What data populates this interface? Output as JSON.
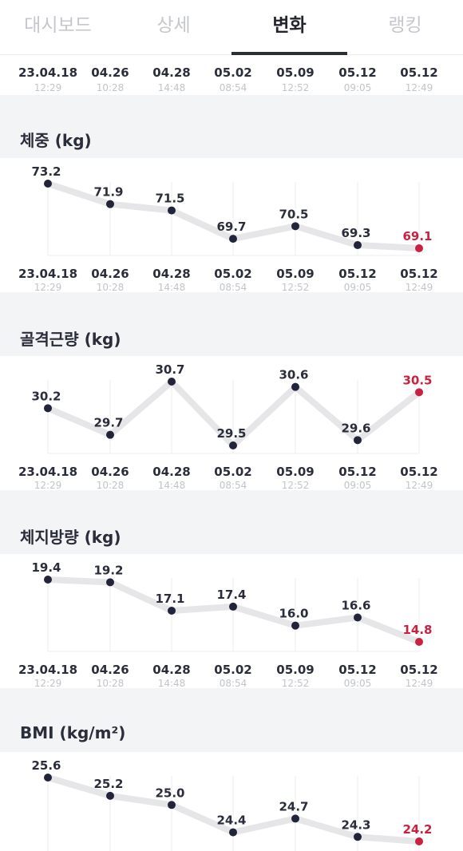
{
  "tabs": [
    {
      "label": "대시보드",
      "active": false
    },
    {
      "label": "상세",
      "active": false
    },
    {
      "label": "변화",
      "active": true
    },
    {
      "label": "랭킹",
      "active": false
    }
  ],
  "dates": [
    "23.04.18",
    "04.26",
    "04.28",
    "05.02",
    "05.09",
    "05.12",
    "05.12"
  ],
  "times": [
    "12:29",
    "10:28",
    "14:48",
    "08:54",
    "12:52",
    "09:05",
    "12:49"
  ],
  "colors": {
    "accent": "#c8223f",
    "point": "#22253a",
    "line": "#e6e6e8"
  },
  "sections": [
    {
      "title": "체중 (kg)",
      "values": [
        "73.2",
        "71.9",
        "71.5",
        "69.7",
        "70.5",
        "69.3",
        "69.1"
      ]
    },
    {
      "title": "골격근량 (kg)",
      "values": [
        "30.2",
        "29.7",
        "30.7",
        "29.5",
        "30.6",
        "29.6",
        "30.5"
      ]
    },
    {
      "title": "체지방량 (kg)",
      "values": [
        "19.4",
        "19.2",
        "17.1",
        "17.4",
        "16.0",
        "16.6",
        "14.8"
      ]
    },
    {
      "title": "BMI (kg/m²)",
      "values": [
        "25.6",
        "25.2",
        "25.0",
        "24.4",
        "24.7",
        "24.3",
        "24.2"
      ]
    }
  ],
  "chart_data": [
    {
      "type": "line",
      "title": "체중 (kg)",
      "x": [
        "23.04.18 12:29",
        "04.26 10:28",
        "04.28 14:48",
        "05.02 08:54",
        "05.09 12:52",
        "05.12 09:05",
        "05.12 12:49"
      ],
      "values": [
        73.2,
        71.9,
        71.5,
        69.7,
        70.5,
        69.3,
        69.1
      ]
    },
    {
      "type": "line",
      "title": "골격근량 (kg)",
      "x": [
        "23.04.18 12:29",
        "04.26 10:28",
        "04.28 14:48",
        "05.02 08:54",
        "05.09 12:52",
        "05.12 09:05",
        "05.12 12:49"
      ],
      "values": [
        30.2,
        29.7,
        30.7,
        29.5,
        30.6,
        29.6,
        30.5
      ]
    },
    {
      "type": "line",
      "title": "체지방량 (kg)",
      "x": [
        "23.04.18 12:29",
        "04.26 10:28",
        "04.28 14:48",
        "05.02 08:54",
        "05.09 12:52",
        "05.12 09:05",
        "05.12 12:49"
      ],
      "values": [
        19.4,
        19.2,
        17.1,
        17.4,
        16.0,
        16.6,
        14.8
      ]
    },
    {
      "type": "line",
      "title": "BMI (kg/m²)",
      "x": [
        "23.04.18 12:29",
        "04.26 10:28",
        "04.28 14:48",
        "05.02 08:54",
        "05.09 12:52",
        "05.12 09:05",
        "05.12 12:49"
      ],
      "values": [
        25.6,
        25.2,
        25.0,
        24.4,
        24.7,
        24.3,
        24.2
      ]
    }
  ]
}
